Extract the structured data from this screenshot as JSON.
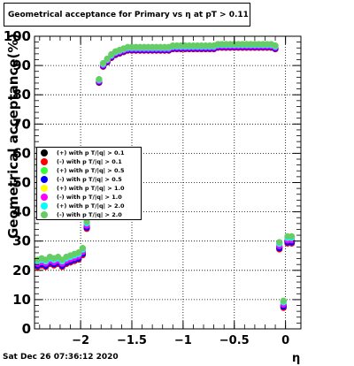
{
  "chart_data": {
    "type": "scatter",
    "title": "Geometrical acceptance for Primary vs   η at pT > 0.11",
    "xlabel": "η",
    "ylabel": "Geometrical acceptance(%)",
    "xlim": [
      -2.45,
      0.15
    ],
    "ylim": [
      0,
      100
    ],
    "x_ticks": [
      -2,
      -1.5,
      -1,
      -0.5,
      0
    ],
    "x_tick_labels": [
      "−2",
      "−1.5",
      "−1",
      "−0.5",
      "0"
    ],
    "y_ticks": [
      0,
      10,
      20,
      30,
      40,
      50,
      60,
      70,
      80,
      90,
      100
    ],
    "grid": true,
    "legend_position": "left-middle",
    "series": [
      {
        "name": "(+) with p T/|q| > 0.1",
        "color": "#000000"
      },
      {
        "name": "(-) with p T/|q| > 0.1",
        "color": "#ff0000"
      },
      {
        "name": "(+) with p T/|q| > 0.5",
        "color": "#33ff33"
      },
      {
        "name": "(-) with p T/|q| > 0.5",
        "color": "#0000ff"
      },
      {
        "name": "(+) with p T/|q| > 1.0",
        "color": "#ffff00"
      },
      {
        "name": "(-) with p T/|q| > 1.0",
        "color": "#ff00ff"
      },
      {
        "name": "(+) with p T/|q| > 2.0",
        "color": "#00ffff"
      },
      {
        "name": "(-) with p T/|q| > 2.0",
        "color": "#66cc66"
      }
    ],
    "x": [
      -2.42,
      -2.38,
      -2.34,
      -2.3,
      -2.26,
      -2.22,
      -2.18,
      -2.14,
      -2.1,
      -2.06,
      -2.02,
      -1.98,
      -1.94,
      -1.82,
      -1.78,
      -1.74,
      -1.7,
      -1.66,
      -1.62,
      -1.58,
      -1.54,
      -1.5,
      -1.46,
      -1.42,
      -1.38,
      -1.34,
      -1.3,
      -1.26,
      -1.22,
      -1.18,
      -1.14,
      -1.1,
      -1.06,
      -1.02,
      -0.98,
      -0.94,
      -0.9,
      -0.86,
      -0.82,
      -0.78,
      -0.74,
      -0.7,
      -0.66,
      -0.62,
      -0.58,
      -0.54,
      -0.5,
      -0.46,
      -0.42,
      -0.38,
      -0.34,
      -0.3,
      -0.26,
      -0.22,
      -0.18,
      -0.14,
      -0.1,
      -0.06,
      -0.02,
      0.02,
      0.06
    ],
    "base_values": [
      22,
      22.5,
      22,
      23,
      22.5,
      23,
      22,
      23,
      23.5,
      24,
      24.5,
      26,
      35,
      84.5,
      90,
      91.5,
      93,
      94,
      94.5,
      95,
      95.5,
      95.5,
      95.5,
      95.5,
      95.5,
      95.5,
      95.5,
      95.5,
      95.5,
      95.5,
      95.5,
      96,
      96,
      96,
      96,
      96,
      96,
      96,
      96,
      96,
      96,
      96,
      96.5,
      96.5,
      96.5,
      96.5,
      96.5,
      96.5,
      96.5,
      96.5,
      96.5,
      96.5,
      96.5,
      96.5,
      96.5,
      96.5,
      96,
      28,
      8,
      30,
      30
    ],
    "series_offsets": [
      0,
      -0.8,
      1.5,
      -0.4,
      0.8,
      0.3,
      1.1,
      1.6
    ]
  },
  "footer": {
    "date": "Sat Dec 26 07:36:12 2020"
  }
}
